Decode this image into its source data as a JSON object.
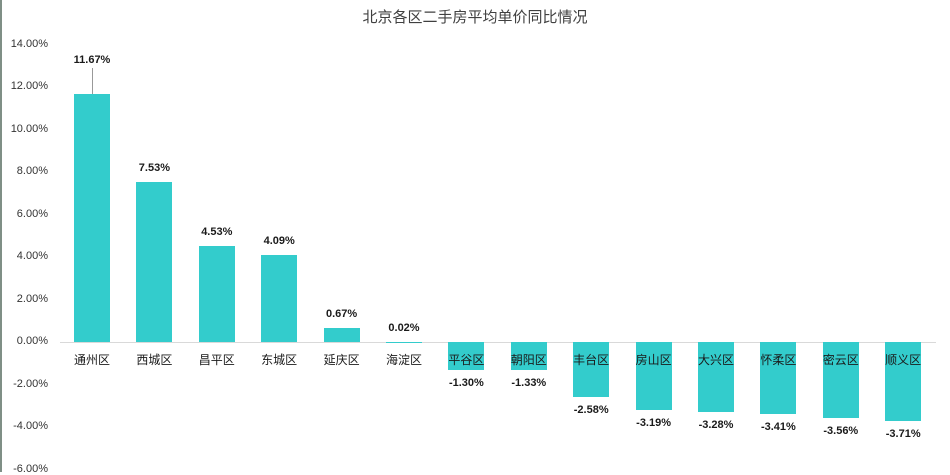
{
  "chart_data": {
    "type": "bar",
    "title": "北京各区二手房平均单价同比情况",
    "xlabel": "",
    "ylabel": "",
    "ylim": [
      -0.06,
      0.14
    ],
    "y_ticks": [
      "14.00%",
      "12.00%",
      "10.00%",
      "8.00%",
      "6.00%",
      "4.00%",
      "2.00%",
      "0.00%",
      "-2.00%",
      "-4.00%",
      "-6.00%"
    ],
    "categories": [
      "通州区",
      "西城区",
      "昌平区",
      "东城区",
      "延庆区",
      "海淀区",
      "平谷区",
      "朝阳区",
      "丰台区",
      "房山区",
      "大兴区",
      "怀柔区",
      "密云区",
      "顺义区"
    ],
    "values": [
      0.1167,
      0.0753,
      0.0453,
      0.0409,
      0.0067,
      0.0002,
      -0.013,
      -0.0133,
      -0.0258,
      -0.0319,
      -0.0328,
      -0.0341,
      -0.0356,
      -0.0371
    ],
    "data_labels": [
      "11.67%",
      "7.53%",
      "4.53%",
      "4.09%",
      "0.67%",
      "0.02%",
      "-1.30%",
      "-1.33%",
      "-2.58%",
      "-3.19%",
      "-3.28%",
      "-3.41%",
      "-3.56%",
      "-3.71%"
    ],
    "grid": false,
    "legend": null,
    "colors": {
      "bar": "#33cccc",
      "axis_line": "#d9d9d9",
      "text": "#1a1a1a"
    }
  }
}
